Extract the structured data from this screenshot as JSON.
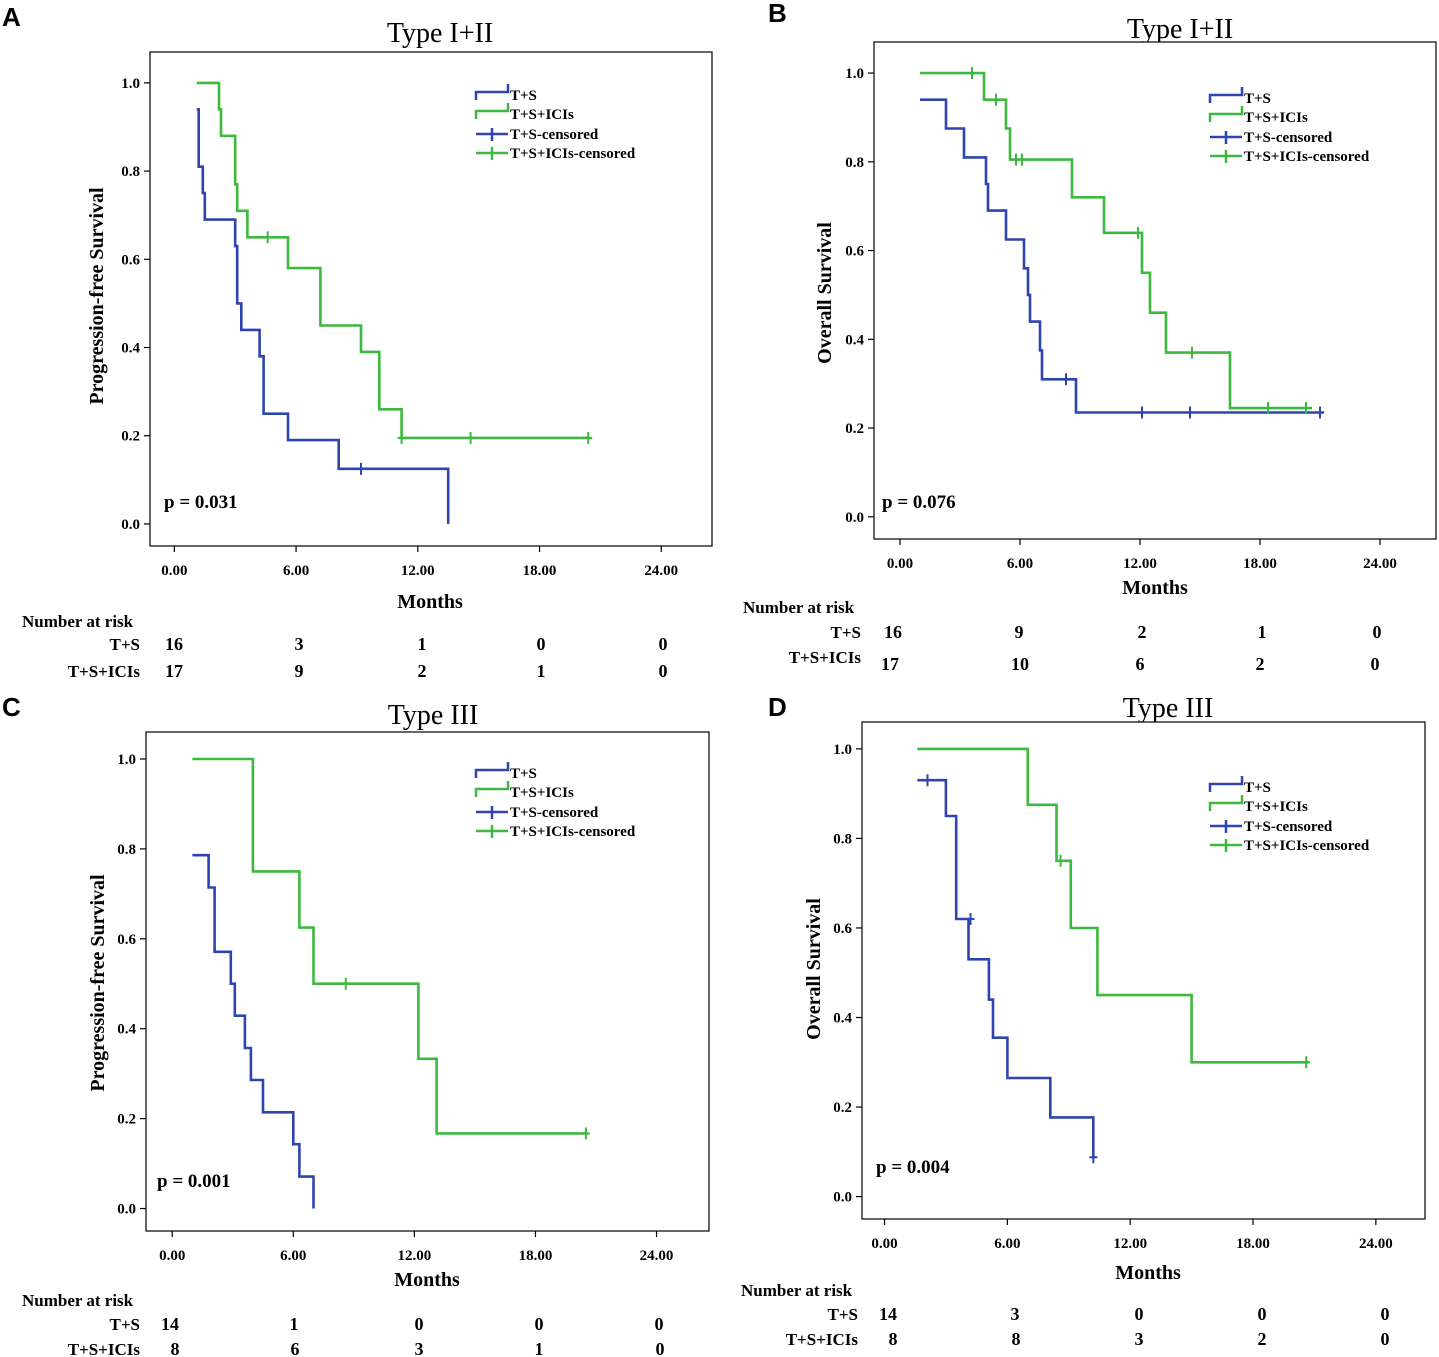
{
  "colors": {
    "T+S": "#2E45B0",
    "T+S+ICIs": "#3DB93F"
  },
  "chart_data": [
    {
      "type": "line",
      "step": true,
      "panel": "A",
      "title": "Type I+II",
      "xlabel": "Months",
      "ylabel": "Progression-free Survival",
      "xticks": [
        "0.00",
        "6.00",
        "12.00",
        "18.00",
        "24.00"
      ],
      "yticks": [
        "0.0",
        "0.2",
        "0.4",
        "0.6",
        "0.8",
        "1.0"
      ],
      "xlim": [
        -1.2,
        26.5
      ],
      "ylim": [
        -0.05,
        1.07
      ],
      "legend": [
        "T+S",
        "T+S+ICIs",
        "T+S-censored",
        "T+S+ICIs-censored"
      ],
      "pvalue": "p = 0.031",
      "series": [
        {
          "name": "T+S",
          "points": [
            [
              1.1,
              0.94
            ],
            [
              1.2,
              0.81
            ],
            [
              1.4,
              0.75
            ],
            [
              1.5,
              0.69
            ],
            [
              3.0,
              0.63
            ],
            [
              3.1,
              0.5
            ],
            [
              3.3,
              0.44
            ],
            [
              4.2,
              0.38
            ],
            [
              4.4,
              0.25
            ],
            [
              5.6,
              0.19
            ],
            [
              8.1,
              0.125
            ],
            [
              13.5,
              0.0
            ]
          ],
          "end": 13.5,
          "censored": [
            [
              9.2,
              0.125
            ]
          ]
        },
        {
          "name": "T+S+ICIs",
          "points": [
            [
              1.1,
              1.0
            ],
            [
              2.2,
              0.94
            ],
            [
              2.3,
              0.88
            ],
            [
              3.0,
              0.77
            ],
            [
              3.1,
              0.71
            ],
            [
              3.6,
              0.65
            ],
            [
              5.6,
              0.58
            ],
            [
              7.2,
              0.45
            ],
            [
              9.2,
              0.39
            ],
            [
              10.1,
              0.26
            ],
            [
              11.2,
              0.195
            ]
          ],
          "end": 20.5,
          "censored": [
            [
              4.6,
              0.65
            ],
            [
              11.2,
              0.195
            ],
            [
              14.6,
              0.195
            ],
            [
              20.4,
              0.195
            ]
          ]
        }
      ],
      "risk_table": {
        "header": "Number at risk",
        "rows": [
          {
            "label": "T+S",
            "values": [
              "16",
              "3",
              "1",
              "0",
              "0"
            ]
          },
          {
            "label": "T+S+ICIs",
            "values": [
              "17",
              "9",
              "2",
              "1",
              "0"
            ]
          }
        ]
      }
    },
    {
      "type": "line",
      "step": true,
      "panel": "B",
      "title": "Type I+II",
      "xlabel": "Months",
      "ylabel": "Overall Survival",
      "xticks": [
        "0.00",
        "6.00",
        "12.00",
        "18.00",
        "24.00"
      ],
      "yticks": [
        "0.0",
        "0.2",
        "0.4",
        "0.6",
        "0.8",
        "1.0"
      ],
      "xlim": [
        -1.3,
        26.8
      ],
      "ylim": [
        -0.05,
        1.07
      ],
      "legend": [
        "T+S",
        "T+S+ICIs",
        "T+S-censored",
        "T+S+ICIs-censored"
      ],
      "pvalue": "p = 0.076",
      "series": [
        {
          "name": "T+S",
          "points": [
            [
              1.0,
              0.94
            ],
            [
              2.3,
              0.875
            ],
            [
              3.2,
              0.81
            ],
            [
              4.3,
              0.75
            ],
            [
              4.4,
              0.69
            ],
            [
              5.3,
              0.625
            ],
            [
              6.2,
              0.56
            ],
            [
              6.4,
              0.5
            ],
            [
              6.5,
              0.44
            ],
            [
              7.0,
              0.375
            ],
            [
              7.1,
              0.31
            ],
            [
              8.8,
              0.235
            ]
          ],
          "end": 21.2,
          "censored": [
            [
              8.3,
              0.31
            ],
            [
              12.1,
              0.235
            ],
            [
              14.5,
              0.235
            ],
            [
              21.0,
              0.235
            ]
          ]
        },
        {
          "name": "T+S+ICIs",
          "points": [
            [
              1.0,
              1.0
            ],
            [
              4.2,
              0.94
            ],
            [
              5.3,
              0.875
            ],
            [
              5.5,
              0.805
            ],
            [
              8.6,
              0.72
            ],
            [
              10.2,
              0.64
            ],
            [
              12.1,
              0.55
            ],
            [
              12.5,
              0.46
            ],
            [
              13.3,
              0.37
            ],
            [
              16.5,
              0.245
            ]
          ],
          "end": 20.6,
          "censored": [
            [
              3.6,
              1.0
            ],
            [
              4.8,
              0.94
            ],
            [
              5.8,
              0.805
            ],
            [
              6.1,
              0.805
            ],
            [
              11.9,
              0.64
            ],
            [
              14.6,
              0.37
            ],
            [
              18.4,
              0.245
            ],
            [
              20.3,
              0.245
            ]
          ]
        }
      ],
      "risk_table": {
        "header": "Number at risk",
        "rows": [
          {
            "label": "T+S",
            "values": [
              "16",
              "9",
              "2",
              "1",
              "0"
            ]
          },
          {
            "label": "T+S+ICIs",
            "values": [
              "17",
              "10",
              "6",
              "2",
              "0"
            ]
          }
        ]
      }
    },
    {
      "type": "line",
      "step": true,
      "panel": "C",
      "title": "Type III",
      "xlabel": "Months",
      "ylabel": "Progression-free Survival",
      "xticks": [
        "0.00",
        "6.00",
        "12.00",
        "18.00",
        "24.00"
      ],
      "yticks": [
        "0.0",
        "0.2",
        "0.4",
        "0.6",
        "0.8",
        "1.0"
      ],
      "xlim": [
        -1.3,
        26.6
      ],
      "ylim": [
        -0.05,
        1.06
      ],
      "legend": [
        "T+S",
        "T+S+ICIs",
        "T+S-censored",
        "T+S+ICIs-censored"
      ],
      "pvalue": "p = 0.001",
      "series": [
        {
          "name": "T+S",
          "points": [
            [
              1.0,
              0.786
            ],
            [
              1.8,
              0.714
            ],
            [
              2.1,
              0.571
            ],
            [
              2.9,
              0.5
            ],
            [
              3.1,
              0.429
            ],
            [
              3.6,
              0.357
            ],
            [
              3.9,
              0.286
            ],
            [
              4.5,
              0.214
            ],
            [
              6.0,
              0.143
            ],
            [
              6.3,
              0.071
            ],
            [
              7.0,
              0.0
            ]
          ],
          "end": 7.0,
          "censored": []
        },
        {
          "name": "T+S+ICIs",
          "points": [
            [
              1.0,
              1.0
            ],
            [
              4.0,
              0.75
            ],
            [
              6.3,
              0.625
            ],
            [
              7.0,
              0.5
            ],
            [
              12.2,
              0.333
            ],
            [
              13.1,
              0.167
            ]
          ],
          "end": 20.6,
          "censored": [
            [
              8.6,
              0.5
            ],
            [
              20.5,
              0.167
            ]
          ]
        }
      ],
      "risk_table": {
        "header": "Number at risk",
        "rows": [
          {
            "label": "T+S",
            "values": [
              "14",
              "1",
              "0",
              "0",
              "0"
            ]
          },
          {
            "label": "T+S+ICIs",
            "values": [
              "8",
              "6",
              "3",
              "1",
              "0"
            ]
          }
        ]
      }
    },
    {
      "type": "line",
      "step": true,
      "panel": "D",
      "title": "Type III",
      "xlabel": "Months",
      "ylabel": "Overall Survival",
      "xticks": [
        "0.00",
        "6.00",
        "12.00",
        "18.00",
        "24.00"
      ],
      "yticks": [
        "0.0",
        "0.2",
        "0.4",
        "0.6",
        "0.8",
        "1.0"
      ],
      "xlim": [
        -1.1,
        26.4
      ],
      "ylim": [
        -0.05,
        1.06
      ],
      "legend": [
        "T+S",
        "T+S+ICIs",
        "T+S-censored",
        "T+S+ICIs-censored"
      ],
      "pvalue": "p = 0.004",
      "series": [
        {
          "name": "T+S",
          "points": [
            [
              1.6,
              0.93
            ],
            [
              3.0,
              0.85
            ],
            [
              3.5,
              0.62
            ],
            [
              4.1,
              0.53
            ],
            [
              5.1,
              0.44
            ],
            [
              5.3,
              0.355
            ],
            [
              6.0,
              0.265
            ],
            [
              8.1,
              0.177
            ],
            [
              10.2,
              0.088
            ]
          ],
          "end": 10.3,
          "censored": [
            [
              2.1,
              0.93
            ],
            [
              4.2,
              0.62
            ],
            [
              10.2,
              0.088
            ]
          ]
        },
        {
          "name": "T+S+ICIs",
          "points": [
            [
              1.6,
              1.0
            ],
            [
              7.0,
              0.875
            ],
            [
              8.4,
              0.75
            ],
            [
              9.1,
              0.6
            ],
            [
              10.4,
              0.45
            ],
            [
              15.0,
              0.3
            ]
          ],
          "end": 20.7,
          "censored": [
            [
              8.6,
              0.75
            ],
            [
              20.6,
              0.3
            ]
          ]
        }
      ],
      "risk_table": {
        "header": "Number at risk",
        "rows": [
          {
            "label": "T+S",
            "values": [
              "14",
              "3",
              "0",
              "0",
              "0"
            ]
          },
          {
            "label": "T+S+ICIs",
            "values": [
              "8",
              "8",
              "3",
              "2",
              "0"
            ]
          }
        ]
      }
    }
  ]
}
